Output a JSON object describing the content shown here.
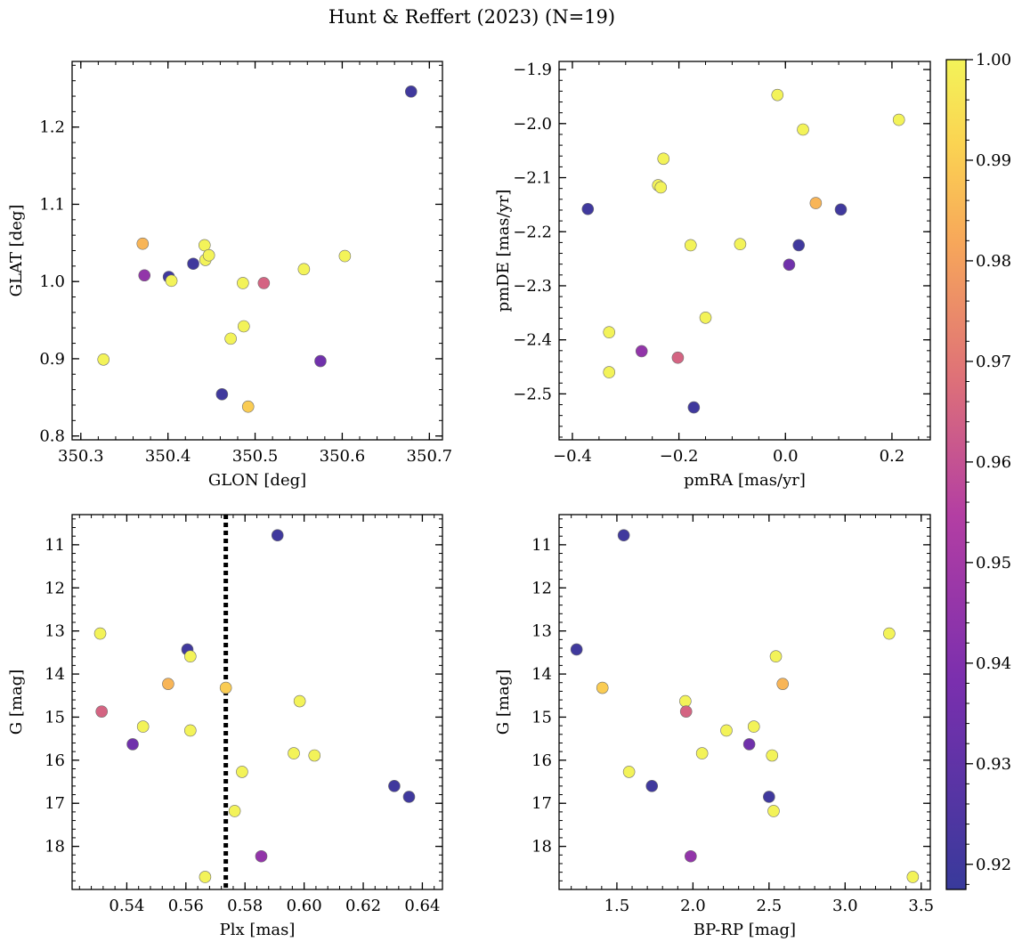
{
  "chart_data": {
    "title": "Hunt & Reffert (2023) (N=19)",
    "colorbar": {
      "range": [
        0.9175,
        1.0
      ],
      "ticks": [
        0.92,
        0.93,
        0.94,
        0.95,
        0.96,
        0.97,
        0.98,
        0.99,
        1.0
      ],
      "tick_labels": [
        "0.92",
        "0.93",
        "0.94",
        "0.95",
        "0.96",
        "0.97",
        "0.98",
        "0.99",
        "1.00"
      ],
      "colormap": "plasma"
    },
    "panels": [
      {
        "type": "scatter",
        "xlabel": "GLON [deg]",
        "ylabel": "GLAT [deg]",
        "xlim": [
          350.29,
          350.715
        ],
        "ylim": [
          0.795,
          1.285
        ],
        "y_inverted": false,
        "xticks": [
          350.3,
          350.4,
          350.5,
          350.6,
          350.7
        ],
        "xtick_labels": [
          "350.3",
          "350.4",
          "350.5",
          "350.6",
          "350.7"
        ],
        "yticks": [
          0.8,
          0.9,
          1.0,
          1.1,
          1.2
        ],
        "ytick_labels": [
          "0.8",
          "0.9",
          "1.0",
          "1.1",
          "1.2"
        ],
        "x_minor": 0.02,
        "y_minor": 0.02,
        "points": [
          {
            "x": 350.326,
            "y": 0.899,
            "c": 1.0
          },
          {
            "x": 350.371,
            "y": 1.049,
            "c": 0.985
          },
          {
            "x": 350.373,
            "y": 1.008,
            "c": 0.945
          },
          {
            "x": 350.401,
            "y": 1.006,
            "c": 0.92
          },
          {
            "x": 350.404,
            "y": 1.001,
            "c": 1.0
          },
          {
            "x": 350.429,
            "y": 1.023,
            "c": 0.92
          },
          {
            "x": 350.442,
            "y": 1.047,
            "c": 1.0
          },
          {
            "x": 350.443,
            "y": 1.028,
            "c": 1.0
          },
          {
            "x": 350.447,
            "y": 1.034,
            "c": 1.0
          },
          {
            "x": 350.462,
            "y": 0.854,
            "c": 0.92
          },
          {
            "x": 350.472,
            "y": 0.926,
            "c": 1.0
          },
          {
            "x": 350.486,
            "y": 0.998,
            "c": 1.0
          },
          {
            "x": 350.487,
            "y": 0.942,
            "c": 1.0
          },
          {
            "x": 350.492,
            "y": 0.838,
            "c": 0.99
          },
          {
            "x": 350.51,
            "y": 0.998,
            "c": 0.965
          },
          {
            "x": 350.556,
            "y": 1.016,
            "c": 1.0
          },
          {
            "x": 350.575,
            "y": 0.897,
            "c": 0.935
          },
          {
            "x": 350.603,
            "y": 1.033,
            "c": 1.0
          },
          {
            "x": 350.679,
            "y": 1.246,
            "c": 0.92
          }
        ]
      },
      {
        "type": "scatter",
        "xlabel": "pmRA [mas/yr]",
        "ylabel": "pmDE [mas/yr]",
        "xlim": [
          -0.425,
          0.272
        ],
        "ylim": [
          -2.585,
          -1.885
        ],
        "y_inverted": false,
        "xticks": [
          -0.4,
          -0.2,
          0.0,
          0.2
        ],
        "xtick_labels": [
          "−0.4",
          "−0.2",
          "0.0",
          "0.2"
        ],
        "yticks": [
          -2.5,
          -2.4,
          -2.3,
          -2.2,
          -2.1,
          -2.0,
          -1.9
        ],
        "ytick_labels": [
          "−2.5",
          "−2.4",
          "−2.3",
          "−2.2",
          "−2.1",
          "−2.0",
          "−1.9"
        ],
        "x_minor": 0.05,
        "y_minor": 0.02,
        "points": [
          {
            "x": -0.371,
            "y": -2.158,
            "c": 0.92
          },
          {
            "x": -0.331,
            "y": -2.386,
            "c": 1.0
          },
          {
            "x": -0.331,
            "y": -2.46,
            "c": 1.0
          },
          {
            "x": -0.27,
            "y": -2.421,
            "c": 0.945
          },
          {
            "x": -0.239,
            "y": -2.114,
            "c": 1.0
          },
          {
            "x": -0.234,
            "y": -2.118,
            "c": 1.0
          },
          {
            "x": -0.229,
            "y": -2.065,
            "c": 1.0
          },
          {
            "x": -0.202,
            "y": -2.433,
            "c": 0.965
          },
          {
            "x": -0.178,
            "y": -2.225,
            "c": 1.0
          },
          {
            "x": -0.172,
            "y": -2.525,
            "c": 0.92
          },
          {
            "x": -0.15,
            "y": -2.359,
            "c": 1.0
          },
          {
            "x": -0.085,
            "y": -2.223,
            "c": 1.0
          },
          {
            "x": -0.015,
            "y": -1.947,
            "c": 1.0
          },
          {
            "x": 0.007,
            "y": -2.261,
            "c": 0.935
          },
          {
            "x": 0.025,
            "y": -2.225,
            "c": 0.92
          },
          {
            "x": 0.033,
            "y": -2.011,
            "c": 1.0
          },
          {
            "x": 0.057,
            "y": -2.147,
            "c": 0.985
          },
          {
            "x": 0.104,
            "y": -2.159,
            "c": 0.92
          },
          {
            "x": 0.213,
            "y": -1.993,
            "c": 1.0
          }
        ]
      },
      {
        "type": "scatter",
        "xlabel": "Plx [mas]",
        "ylabel": "G [mag]",
        "xlim": [
          0.5215,
          0.6468
        ],
        "ylim": [
          10.3,
          19.0
        ],
        "y_inverted": true,
        "xticks": [
          0.54,
          0.56,
          0.58,
          0.6,
          0.62,
          0.64
        ],
        "xtick_labels": [
          "0.54",
          "0.56",
          "0.58",
          "0.60",
          "0.62",
          "0.64"
        ],
        "yticks": [
          11,
          12,
          13,
          14,
          15,
          16,
          17,
          18
        ],
        "ytick_labels": [
          "11",
          "12",
          "13",
          "14",
          "15",
          "16",
          "17",
          "18"
        ],
        "x_minor": 0.004,
        "y_minor": 0.2,
        "vline": {
          "x": 0.5735,
          "style": "dotted"
        },
        "points": [
          {
            "x": 0.531,
            "y": 13.06,
            "c": 1.0
          },
          {
            "x": 0.5315,
            "y": 14.87,
            "c": 0.965
          },
          {
            "x": 0.542,
            "y": 15.63,
            "c": 0.935
          },
          {
            "x": 0.5455,
            "y": 15.22,
            "c": 1.0
          },
          {
            "x": 0.554,
            "y": 14.23,
            "c": 0.985
          },
          {
            "x": 0.5605,
            "y": 13.43,
            "c": 0.92
          },
          {
            "x": 0.5615,
            "y": 13.59,
            "c": 1.0
          },
          {
            "x": 0.5615,
            "y": 15.31,
            "c": 1.0
          },
          {
            "x": 0.5665,
            "y": 18.71,
            "c": 1.0
          },
          {
            "x": 0.5735,
            "y": 14.32,
            "c": 0.99
          },
          {
            "x": 0.5765,
            "y": 17.18,
            "c": 1.0
          },
          {
            "x": 0.579,
            "y": 16.27,
            "c": 1.0
          },
          {
            "x": 0.5855,
            "y": 18.23,
            "c": 0.945
          },
          {
            "x": 0.591,
            "y": 10.78,
            "c": 0.92
          },
          {
            "x": 0.5965,
            "y": 15.84,
            "c": 1.0
          },
          {
            "x": 0.5985,
            "y": 14.63,
            "c": 1.0
          },
          {
            "x": 0.6035,
            "y": 15.89,
            "c": 1.0
          },
          {
            "x": 0.6305,
            "y": 16.6,
            "c": 0.92
          },
          {
            "x": 0.6355,
            "y": 16.85,
            "c": 0.92
          }
        ]
      },
      {
        "type": "scatter",
        "xlabel": "BP-RP [mag]",
        "ylabel": "G [mag]",
        "xlim": [
          1.12,
          3.56
        ],
        "ylim": [
          10.3,
          19.0
        ],
        "y_inverted": true,
        "xticks": [
          1.5,
          2.0,
          2.5,
          3.0,
          3.5
        ],
        "xtick_labels": [
          "1.5",
          "2.0",
          "2.5",
          "3.0",
          "3.5"
        ],
        "yticks": [
          11,
          12,
          13,
          14,
          15,
          16,
          17,
          18
        ],
        "ytick_labels": [
          "11",
          "12",
          "13",
          "14",
          "15",
          "16",
          "17",
          "18"
        ],
        "x_minor": 0.1,
        "y_minor": 0.2,
        "points": [
          {
            "x": 1.235,
            "y": 13.43,
            "c": 0.92
          },
          {
            "x": 1.405,
            "y": 14.32,
            "c": 0.99
          },
          {
            "x": 1.545,
            "y": 10.78,
            "c": 0.92
          },
          {
            "x": 1.58,
            "y": 16.27,
            "c": 1.0
          },
          {
            "x": 1.73,
            "y": 16.6,
            "c": 0.92
          },
          {
            "x": 1.95,
            "y": 14.63,
            "c": 1.0
          },
          {
            "x": 1.955,
            "y": 14.87,
            "c": 0.965
          },
          {
            "x": 1.985,
            "y": 18.23,
            "c": 0.945
          },
          {
            "x": 2.06,
            "y": 15.84,
            "c": 1.0
          },
          {
            "x": 2.22,
            "y": 15.31,
            "c": 1.0
          },
          {
            "x": 2.37,
            "y": 15.63,
            "c": 0.935
          },
          {
            "x": 2.4,
            "y": 15.22,
            "c": 1.0
          },
          {
            "x": 2.5,
            "y": 16.85,
            "c": 0.92
          },
          {
            "x": 2.52,
            "y": 15.89,
            "c": 1.0
          },
          {
            "x": 2.53,
            "y": 17.18,
            "c": 1.0
          },
          {
            "x": 2.545,
            "y": 13.59,
            "c": 1.0
          },
          {
            "x": 2.59,
            "y": 14.23,
            "c": 0.985
          },
          {
            "x": 3.29,
            "y": 13.06,
            "c": 1.0
          },
          {
            "x": 3.445,
            "y": 18.71,
            "c": 1.0
          }
        ]
      }
    ]
  }
}
